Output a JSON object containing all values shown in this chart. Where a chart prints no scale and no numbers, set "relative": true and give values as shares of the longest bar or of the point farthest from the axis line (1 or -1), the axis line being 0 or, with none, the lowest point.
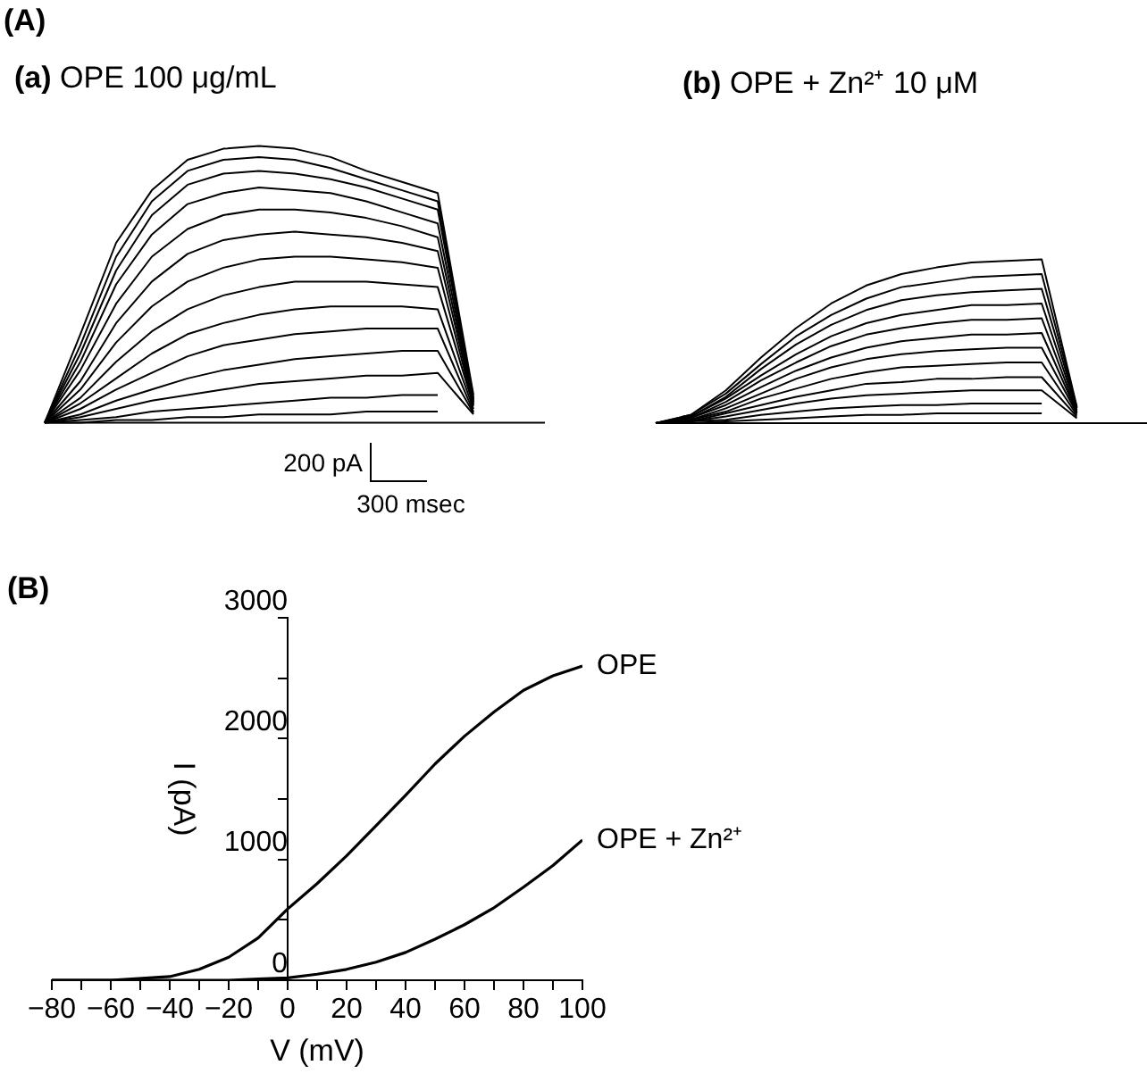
{
  "chart_data": [
    {
      "type": "line",
      "title": "(a) OPE 100 μg/mL",
      "relative": true,
      "grid": false,
      "legend": false,
      "marker": "none",
      "line_style": "solid",
      "annotations": [
        "(A)",
        "200 pA",
        "300 msec"
      ],
      "categories": [
        null,
        null,
        null,
        null,
        null,
        null,
        null,
        null,
        null,
        null,
        null,
        null,
        null,
        null,
        null
      ],
      "series": [
        {
          "color": "#000000",
          "values": [
            0,
            0.32,
            0.65,
            0.84,
            0.95,
            0.99,
            1.0,
            0.99,
            0.96,
            0.91,
            0.87,
            0.83,
            0.1,
            null,
            null
          ]
        },
        {
          "color": "#000000",
          "values": [
            0,
            0.28,
            0.6,
            0.8,
            0.91,
            0.95,
            0.96,
            0.95,
            0.92,
            0.88,
            0.84,
            0.8,
            0.09,
            null,
            null
          ]
        },
        {
          "color": "#000000",
          "values": [
            0,
            0.25,
            0.55,
            0.75,
            0.86,
            0.9,
            0.91,
            0.9,
            0.88,
            0.85,
            0.81,
            0.77,
            0.085,
            null,
            null
          ]
        },
        {
          "color": "#000000",
          "values": [
            0,
            0.22,
            0.5,
            0.68,
            0.79,
            0.83,
            0.85,
            0.84,
            0.83,
            0.8,
            0.76,
            0.72,
            0.08,
            null,
            null
          ]
        },
        {
          "color": "#000000",
          "values": [
            0,
            0.19,
            0.43,
            0.6,
            0.7,
            0.75,
            0.77,
            0.77,
            0.76,
            0.74,
            0.71,
            0.67,
            0.075,
            null,
            null
          ]
        },
        {
          "color": "#000000",
          "values": [
            0,
            0.15,
            0.36,
            0.51,
            0.61,
            0.66,
            0.68,
            0.69,
            0.68,
            0.67,
            0.65,
            0.62,
            0.07,
            null,
            null
          ]
        },
        {
          "color": "#000000",
          "values": [
            0,
            0.12,
            0.29,
            0.42,
            0.51,
            0.56,
            0.59,
            0.6,
            0.6,
            0.59,
            0.58,
            0.56,
            0.065,
            null,
            null
          ]
        },
        {
          "color": "#000000",
          "values": [
            0,
            0.09,
            0.22,
            0.33,
            0.41,
            0.46,
            0.49,
            0.51,
            0.51,
            0.51,
            0.5,
            0.49,
            0.06,
            null,
            null
          ]
        },
        {
          "color": "#000000",
          "values": [
            0,
            0.07,
            0.16,
            0.25,
            0.32,
            0.36,
            0.39,
            0.41,
            0.42,
            0.42,
            0.42,
            0.41,
            0.05,
            null,
            null
          ]
        },
        {
          "color": "#000000",
          "values": [
            0,
            0.05,
            0.12,
            0.18,
            0.24,
            0.28,
            0.3,
            0.32,
            0.33,
            0.34,
            0.34,
            0.34,
            0.04,
            null,
            null
          ]
        },
        {
          "color": "#000000",
          "values": [
            0,
            0.03,
            0.08,
            0.12,
            0.16,
            0.19,
            0.21,
            0.23,
            0.24,
            0.25,
            0.26,
            0.26,
            0.035,
            null,
            null
          ]
        },
        {
          "color": "#000000",
          "values": [
            0,
            0.02,
            0.05,
            0.08,
            0.1,
            0.12,
            0.14,
            0.15,
            0.16,
            0.17,
            0.17,
            0.18,
            0.03,
            null,
            null
          ]
        },
        {
          "color": "#000000",
          "values": [
            0,
            0.01,
            0.02,
            0.04,
            0.05,
            0.06,
            0.07,
            0.08,
            0.09,
            0.09,
            0.1,
            0.1,
            null,
            null,
            null
          ]
        },
        {
          "color": "#000000",
          "values": [
            0,
            0,
            0.01,
            0.01,
            0.02,
            0.02,
            0.03,
            0.03,
            0.03,
            0.04,
            0.04,
            0.04,
            null,
            null,
            null
          ]
        },
        {
          "color": "#000000",
          "values": [
            0,
            0,
            0,
            0,
            0,
            0,
            0,
            0,
            0,
            0,
            0,
            0,
            0,
            0,
            0
          ]
        }
      ]
    },
    {
      "type": "line",
      "title": "(b) OPE + Zn²⁺ 10 μM",
      "relative": true,
      "grid": false,
      "legend": false,
      "marker": "none",
      "line_style": "solid",
      "categories": [
        null,
        null,
        null,
        null,
        null,
        null,
        null,
        null,
        null,
        null,
        null,
        null,
        null,
        null,
        null
      ],
      "series": [
        {
          "color": "#000000",
          "values": [
            0,
            0.05,
            0.2,
            0.4,
            0.58,
            0.73,
            0.84,
            0.91,
            0.95,
            0.98,
            0.99,
            1.0,
            0.1,
            null,
            null
          ]
        },
        {
          "color": "#000000",
          "values": [
            0,
            0.05,
            0.18,
            0.36,
            0.53,
            0.66,
            0.76,
            0.83,
            0.86,
            0.89,
            0.9,
            0.91,
            0.095,
            null,
            null
          ]
        },
        {
          "color": "#000000",
          "values": [
            0,
            0.04,
            0.16,
            0.33,
            0.48,
            0.6,
            0.69,
            0.75,
            0.78,
            0.8,
            0.81,
            0.82,
            0.09,
            null,
            null
          ]
        },
        {
          "color": "#000000",
          "values": [
            0,
            0.04,
            0.15,
            0.29,
            0.42,
            0.53,
            0.61,
            0.66,
            0.69,
            0.72,
            0.72,
            0.73,
            0.08,
            null,
            null
          ]
        },
        {
          "color": "#000000",
          "values": [
            0,
            0.03,
            0.13,
            0.26,
            0.37,
            0.47,
            0.54,
            0.58,
            0.61,
            0.63,
            0.63,
            0.64,
            0.07,
            null,
            null
          ]
        },
        {
          "color": "#000000",
          "values": [
            0,
            0.03,
            0.11,
            0.22,
            0.32,
            0.4,
            0.46,
            0.5,
            0.52,
            0.54,
            0.54,
            0.55,
            0.065,
            null,
            null
          ]
        },
        {
          "color": "#000000",
          "values": [
            0,
            0.02,
            0.09,
            0.18,
            0.27,
            0.34,
            0.39,
            0.42,
            0.44,
            0.45,
            0.46,
            0.46,
            0.06,
            null,
            null
          ]
        },
        {
          "color": "#000000",
          "values": [
            0,
            0.02,
            0.07,
            0.15,
            0.21,
            0.27,
            0.31,
            0.34,
            0.35,
            0.36,
            0.37,
            0.37,
            0.05,
            null,
            null
          ]
        },
        {
          "color": "#000000",
          "values": [
            0,
            0.01,
            0.06,
            0.11,
            0.16,
            0.2,
            0.24,
            0.25,
            0.27,
            0.27,
            0.28,
            0.28,
            0.04,
            null,
            null
          ]
        },
        {
          "color": "#000000",
          "values": [
            0,
            0.01,
            0.04,
            0.08,
            0.12,
            0.15,
            0.17,
            0.18,
            0.19,
            0.2,
            0.2,
            0.2,
            0.03,
            null,
            null
          ]
        },
        {
          "color": "#000000",
          "values": [
            0,
            0.01,
            0.02,
            0.05,
            0.07,
            0.09,
            0.1,
            0.11,
            0.11,
            0.12,
            0.12,
            0.12,
            null,
            null,
            null
          ]
        },
        {
          "color": "#000000",
          "values": [
            0,
            0,
            0.01,
            0.02,
            0.03,
            0.04,
            0.05,
            0.05,
            0.06,
            0.06,
            0.06,
            0.06,
            null,
            null,
            null
          ]
        },
        {
          "color": "#000000",
          "values": [
            0,
            0,
            0,
            0,
            0,
            0,
            0,
            0,
            0,
            0,
            0,
            0,
            0,
            0,
            0
          ]
        }
      ]
    },
    {
      "type": "line",
      "title": "(B)",
      "xlabel": "V (mV)",
      "ylabel": "I (pA)",
      "grid": false,
      "legend": false,
      "marker": "none",
      "line_style": "solid",
      "x": [
        -80,
        -60,
        -40,
        -30,
        -20,
        -10,
        0,
        10,
        20,
        30,
        40,
        50,
        60,
        70,
        80,
        90,
        100
      ],
      "xlim": [
        -80,
        100
      ],
      "xticks": [
        {
          "value": -80,
          "label": "−80"
        },
        {
          "value": -70,
          "label": null
        },
        {
          "value": -60,
          "label": "−60"
        },
        {
          "value": -50,
          "label": null
        },
        {
          "value": -40,
          "label": "−40"
        },
        {
          "value": -30,
          "label": null
        },
        {
          "value": -20,
          "label": "−20"
        },
        {
          "value": -10,
          "label": null
        },
        0,
        {
          "value": 10,
          "label": null
        },
        20,
        {
          "value": 30,
          "label": null
        },
        40,
        {
          "value": 50,
          "label": null
        },
        60,
        {
          "value": 70,
          "label": null
        },
        80,
        {
          "value": 90,
          "label": null
        },
        100
      ],
      "ylim": [
        0,
        3000
      ],
      "yticks": [
        0,
        {
          "value": 500,
          "label": null
        },
        1000,
        {
          "value": 1500,
          "label": null
        },
        2000,
        {
          "value": 2500,
          "label": null
        },
        3000
      ],
      "series": [
        {
          "name": "OPE",
          "color": "#000000",
          "values": [
            0,
            0,
            30,
            90,
            190,
            350,
            590,
            800,
            1030,
            1280,
            1530,
            1790,
            2020,
            2220,
            2400,
            2520,
            2600
          ]
        },
        {
          "name": "OPE + Zn²⁺",
          "color": "#000000",
          "values": [
            0,
            0,
            0,
            0,
            0,
            10,
            20,
            50,
            90,
            150,
            230,
            340,
            460,
            600,
            770,
            950,
            1160
          ]
        }
      ]
    }
  ]
}
